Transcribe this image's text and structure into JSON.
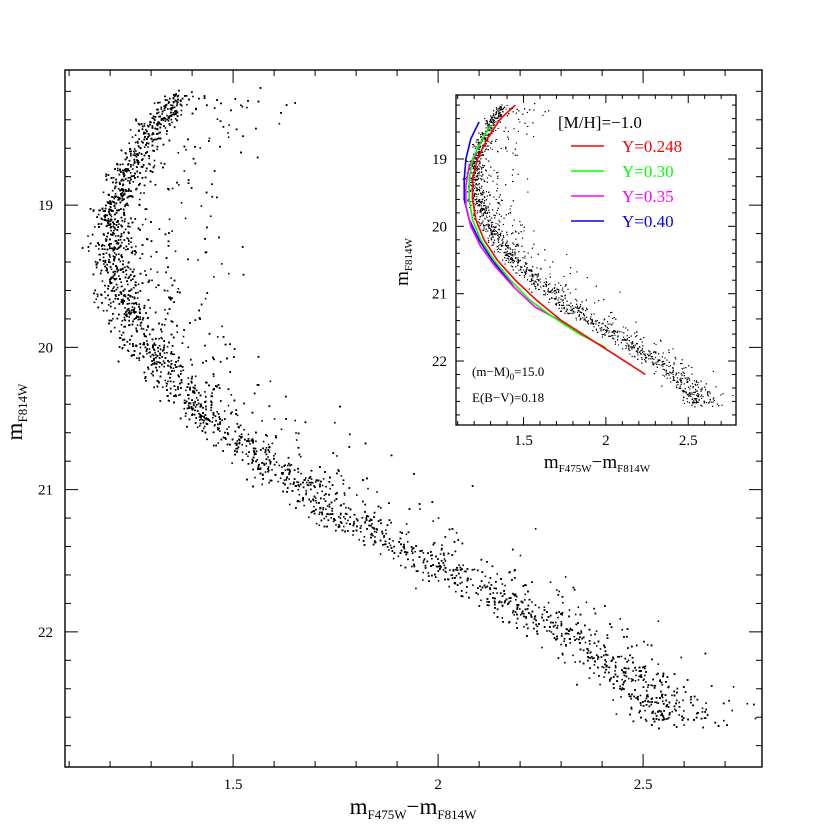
{
  "chart_data": [
    {
      "id": "main",
      "type": "scatter",
      "xlabel": {
        "base": "m",
        "sub1": "F475W",
        "minus": "−",
        "base2": "m",
        "sub2": "F814W"
      },
      "ylabel": {
        "base": "m",
        "sub": "F814W"
      },
      "xlim": [
        1.09,
        2.79
      ],
      "ylim": [
        22.95,
        18.05
      ],
      "x_ticks": [
        1.5,
        2,
        2.5
      ],
      "x_tick_labels": [
        "1.5",
        "2",
        "2.5"
      ],
      "y_ticks": [
        19,
        20,
        21,
        22
      ],
      "y_tick_labels": [
        "19",
        "20",
        "21",
        "22"
      ],
      "ridge_line": {
        "x": [
          1.37,
          1.3,
          1.24,
          1.21,
          1.2,
          1.22,
          1.26,
          1.34,
          1.46,
          1.62,
          1.8,
          2.0,
          2.2,
          2.38,
          2.5,
          2.57
        ],
        "y": [
          18.22,
          18.45,
          18.75,
          19.0,
          19.3,
          19.6,
          19.9,
          20.2,
          20.55,
          20.9,
          21.25,
          21.55,
          21.85,
          22.15,
          22.4,
          22.65
        ]
      },
      "series_color": "#000000"
    },
    {
      "id": "inset",
      "type": "line",
      "xlabel": {
        "base": "m",
        "sub1": "F475W",
        "minus": "−",
        "base2": "m",
        "sub2": "F814W"
      },
      "ylabel": {
        "base": "m",
        "sub": "F814W"
      },
      "xlim": [
        1.09,
        2.79
      ],
      "ylim": [
        22.95,
        18.05
      ],
      "x_ticks": [
        1.5,
        2,
        2.5
      ],
      "x_tick_labels": [
        "1.5",
        "2",
        "2.5"
      ],
      "y_ticks": [
        19,
        20,
        21,
        22
      ],
      "y_tick_labels": [
        "19",
        "20",
        "21",
        "22"
      ],
      "legend_title": "[M/H]=−1.0",
      "annotation_1": {
        "base": "(m−M)",
        "sub": "0",
        "tail": "=15.0"
      },
      "annotation_2": "E(B−V)=0.18",
      "series": [
        {
          "name": "Y=0.248",
          "color": "#ff0000",
          "x": [
            1.45,
            1.36,
            1.28,
            1.22,
            1.19,
            1.19,
            1.21,
            1.26,
            1.34,
            1.45,
            1.58,
            1.73,
            1.89,
            2.05,
            2.24
          ],
          "y": [
            18.2,
            18.4,
            18.7,
            19.0,
            19.3,
            19.6,
            19.9,
            20.2,
            20.5,
            20.8,
            21.1,
            21.4,
            21.65,
            21.9,
            22.2
          ]
        },
        {
          "name": "Y=0.30",
          "color": "#00ff00",
          "x": [
            1.3,
            1.24,
            1.19,
            1.17,
            1.17,
            1.19,
            1.24,
            1.32,
            1.42,
            1.54,
            1.68,
            1.84,
            2.0
          ],
          "y": [
            18.5,
            18.75,
            19.0,
            19.3,
            19.6,
            19.9,
            20.2,
            20.5,
            20.8,
            21.1,
            21.35,
            21.6,
            21.8
          ]
        },
        {
          "name": "Y=0.35",
          "color": "#ff00ff",
          "x": [
            1.22,
            1.17,
            1.15,
            1.15,
            1.18,
            1.24,
            1.33,
            1.44,
            1.57,
            1.72,
            1.75
          ],
          "y": [
            18.9,
            19.1,
            19.4,
            19.7,
            20.0,
            20.3,
            20.6,
            20.9,
            21.2,
            21.4,
            21.45
          ]
        },
        {
          "name": "Y=0.40",
          "color": "#0000ff",
          "x": [
            1.23,
            1.18,
            1.15,
            1.14,
            1.14,
            1.17,
            1.23,
            1.31,
            1.41,
            1.44
          ],
          "y": [
            18.45,
            18.7,
            19.0,
            19.3,
            19.6,
            19.9,
            20.2,
            20.5,
            20.8,
            20.9
          ]
        }
      ]
    }
  ]
}
